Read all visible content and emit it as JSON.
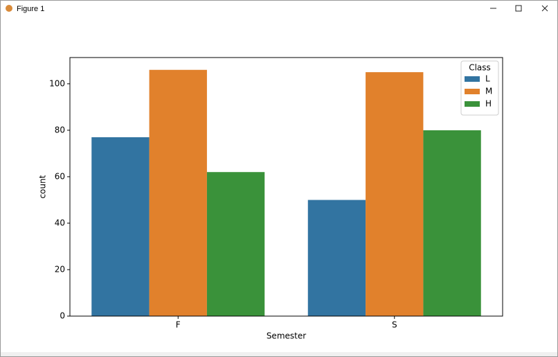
{
  "window_title": "Figure 1",
  "chart_data": {
    "type": "bar",
    "x_label": "Semester",
    "y_label": "count",
    "categories": [
      "F",
      "S"
    ],
    "series": [
      {
        "name": "L",
        "color": "#3274a1",
        "values": [
          77,
          50
        ]
      },
      {
        "name": "M",
        "color": "#e1812c",
        "values": [
          106,
          105
        ]
      },
      {
        "name": "H",
        "color": "#3a923a",
        "values": [
          62,
          80
        ]
      }
    ],
    "legend_title": "Class",
    "legend": "upper right",
    "ylim": [
      0,
      111.3
    ],
    "yticks": [
      0,
      20,
      40,
      60,
      80,
      100
    ],
    "grid": false
  }
}
